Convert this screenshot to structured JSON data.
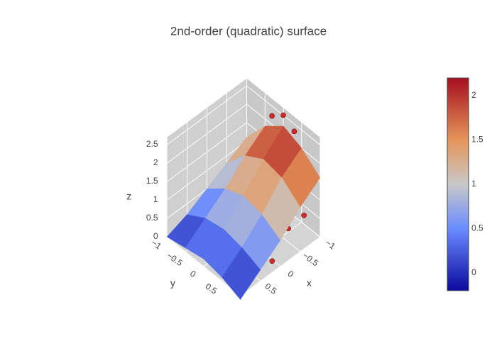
{
  "chart_data": {
    "type": "surface",
    "title": "2nd-order (quadratic) surface",
    "x_label": "x",
    "y_label": "y",
    "z_label": "z",
    "x": [
      -1,
      -0.5,
      0,
      0.5,
      1
    ],
    "y": [
      -1,
      -0.5,
      0,
      0.5,
      1
    ],
    "z": [
      [
        1.1,
        1.8,
        2.2,
        2.0,
        1.6
      ],
      [
        0.8,
        1.4,
        1.7,
        1.6,
        1.2
      ],
      [
        0.5,
        0.9,
        1.1,
        1.0,
        0.7
      ],
      [
        0.2,
        0.5,
        0.6,
        0.5,
        0.3
      ],
      [
        0.0,
        0.1,
        0.2,
        0.1,
        -0.1
      ]
    ],
    "points": {
      "color": "#d62728",
      "x": [
        -1,
        -0.9,
        -1,
        1,
        0.8,
        0.9,
        -0.6,
        -0.3,
        0.2,
        0.7,
        0.3,
        -0.8
      ],
      "y": [
        0,
        -0.2,
        0.3,
        -0.8,
        -0.5,
        -0.9,
        1,
        0.9,
        1,
        0.6,
        -0.6,
        0.9
      ],
      "z": [
        2.5,
        2.4,
        2.3,
        0.2,
        0.1,
        0.05,
        0.9,
        0.7,
        0.3,
        0.0,
        0.3,
        1.4
      ]
    },
    "xlim": [
      -1,
      1
    ],
    "ylim": [
      -1,
      1
    ],
    "zlim": [
      0,
      2.7
    ],
    "xticks": [
      {
        "value": -1,
        "label": "−1"
      },
      {
        "value": -0.5,
        "label": "−0.5"
      },
      0,
      0.5
    ],
    "yticks": [
      {
        "value": -1,
        "label": "−1"
      },
      {
        "value": -0.5,
        "label": "−0.5"
      },
      0,
      0.5
    ],
    "zticks": [
      0,
      0.5,
      1,
      1.5,
      2,
      2.5
    ],
    "colorscale": [
      [
        -0.2,
        "#0a0a9e"
      ],
      [
        0.5,
        "#6a8cff"
      ],
      [
        1,
        "#c8c8c8"
      ],
      [
        1.5,
        "#e5955a"
      ],
      [
        2.2,
        "#a50f1e"
      ]
    ],
    "colorbar_ticks": [
      0,
      0.5,
      1,
      1.5,
      2
    ]
  }
}
